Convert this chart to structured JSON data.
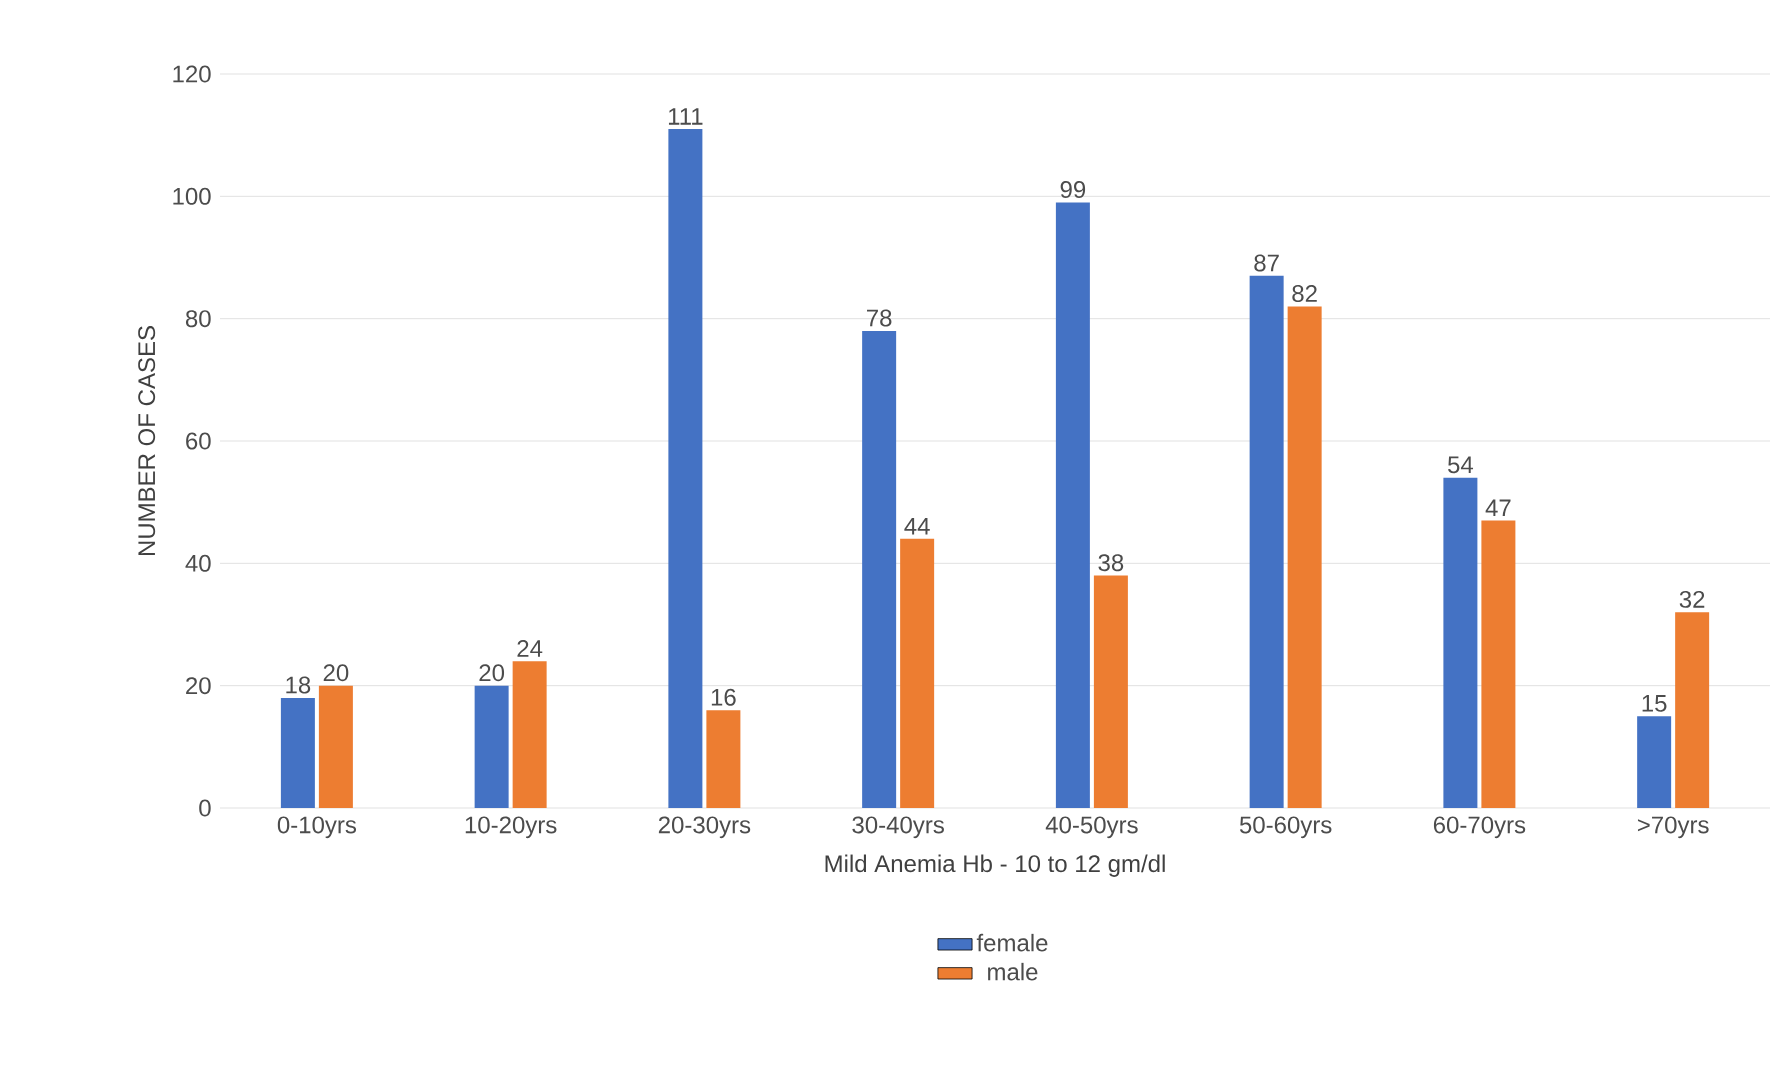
{
  "chart_data": {
    "type": "bar",
    "xlabel": "Mild Anemia  Hb - 10 to 12 gm/dl",
    "ylabel": "NUMBER OF CASES",
    "categories": [
      "0-10yrs",
      "10-20yrs",
      "20-30yrs",
      "30-40yrs",
      "40-50yrs",
      "50-60yrs",
      "60-70yrs",
      ">70yrs"
    ],
    "series": [
      {
        "name": "female",
        "color": "#4472c4",
        "values": [
          18,
          20,
          111,
          78,
          99,
          87,
          54,
          15
        ]
      },
      {
        "name": "male",
        "color": "#ed7d31",
        "values": [
          20,
          24,
          16,
          44,
          38,
          82,
          47,
          32
        ]
      }
    ],
    "ylim": [
      0,
      120
    ],
    "yticks": [
      0,
      20,
      40,
      60,
      80,
      100,
      120
    ],
    "grid": "y",
    "legend": "bottom",
    "data_labels": true
  }
}
